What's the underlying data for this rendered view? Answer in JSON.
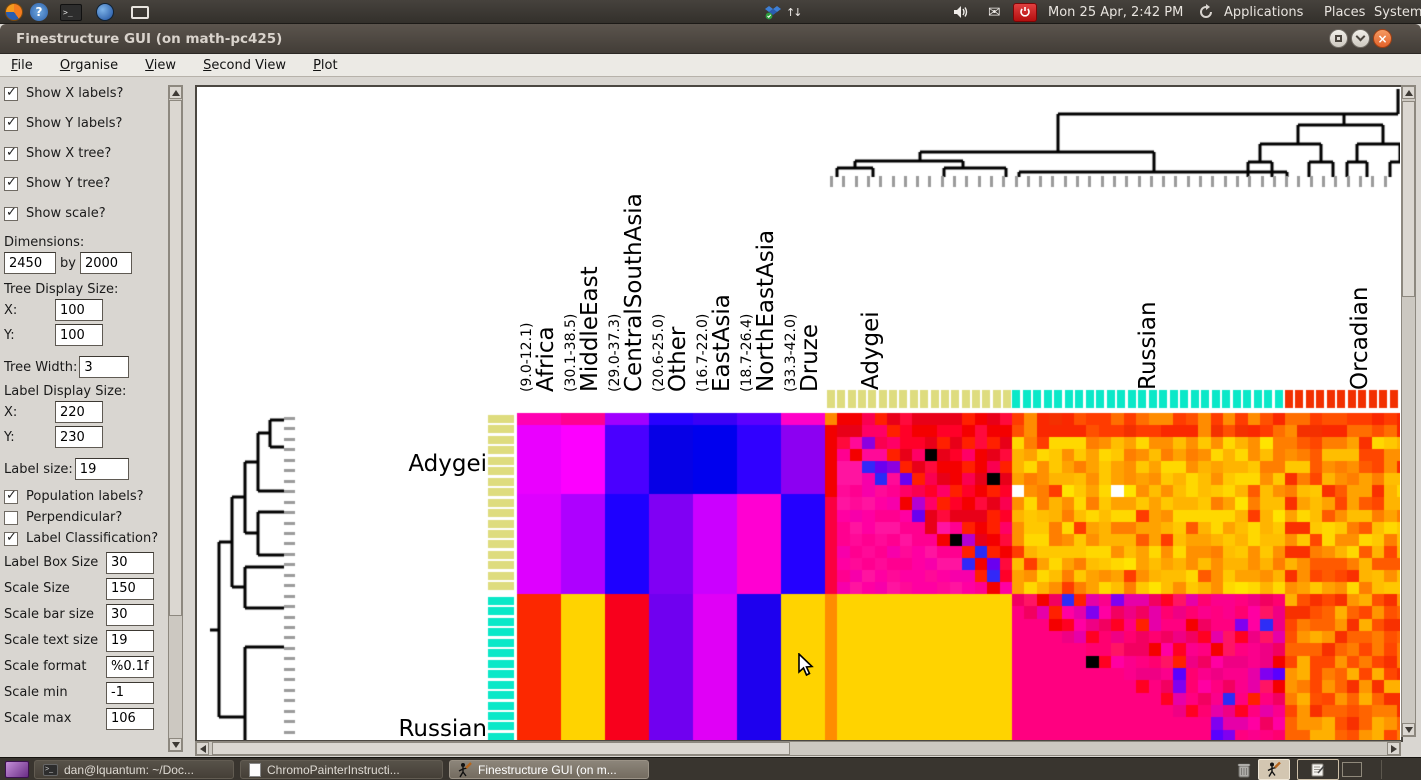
{
  "glyphs": {
    "check": "✓",
    "close": "×",
    "question": "?",
    "term_prompt": ">_",
    "mail": "✉",
    "net_up": "↑",
    "net_down": "↓"
  },
  "desktop": {
    "top_panel": {
      "left_icons": [
        "firefox-icon",
        "help-icon",
        "terminal-icon",
        "thunderbird-icon",
        "display-icon"
      ],
      "right_icons": [
        "dropbox-icon",
        "network-icon",
        "volume-icon",
        "mail-icon",
        "power-icon",
        "updates-icon"
      ],
      "clock": "Mon 25 Apr,  2:42 PM",
      "menus": [
        "Applications",
        "Places",
        "System"
      ]
    },
    "taskbar": {
      "windows": [
        {
          "label": "dan@lquantum: ~/Doc...",
          "icon": "terminal",
          "active": false
        },
        {
          "label": "ChromoPainterInstructi...",
          "icon": "document",
          "active": false
        },
        {
          "label": "Finestructure GUI (on m...",
          "icon": "finestructure",
          "active": true
        }
      ],
      "tray_icons": [
        "trash-icon",
        "finestructure-icon",
        "notes-icon"
      ]
    }
  },
  "window": {
    "title": "Finestructure GUI (on math-pc425)",
    "menu": [
      "File",
      "Organise",
      "View",
      "Second View",
      "Plot"
    ]
  },
  "sidebar": {
    "checks_top": [
      {
        "label": "Show X labels?",
        "checked": true
      },
      {
        "label": "Show Y labels?",
        "checked": true
      },
      {
        "label": "Show X tree?",
        "checked": true
      },
      {
        "label": "Show Y tree?",
        "checked": true
      },
      {
        "label": "Show scale?",
        "checked": true
      }
    ],
    "dimensions": {
      "label": "Dimensions:",
      "width": "2450",
      "by": "by",
      "height": "2000"
    },
    "tree_display": {
      "label": "Tree Display Size:",
      "x_label": "X:",
      "x": "100",
      "y_label": "Y:",
      "y": "100"
    },
    "tree_width": {
      "label": "Tree Width:",
      "value": "3"
    },
    "label_display": {
      "label": "Label Display Size:",
      "x_label": "X:",
      "x": "220",
      "y_label": "Y:",
      "y": "230"
    },
    "label_size": {
      "label": "Label size:",
      "value": "19"
    },
    "checks_mid": [
      {
        "label": "Population labels?",
        "checked": true
      },
      {
        "label": "Perpendicular?",
        "checked": false
      },
      {
        "label": "Label Classification?",
        "checked": true
      }
    ],
    "fields": [
      {
        "label": "Label Box Size",
        "value": "30"
      },
      {
        "label": "Scale Size",
        "value": "150"
      },
      {
        "label": "Scale bar size",
        "value": "30"
      },
      {
        "label": "Scale text size",
        "value": "19"
      },
      {
        "label": "Scale format",
        "value": "%0.1f"
      },
      {
        "label": "Scale min",
        "value": "-1"
      },
      {
        "label": "Scale max",
        "value": "106"
      }
    ]
  },
  "plot": {
    "col_pop_labels": [
      {
        "name": "Africa",
        "range": "(9.0-12.1)"
      },
      {
        "name": "MiddleEast",
        "range": "(30.1-38.5)"
      },
      {
        "name": "CentralSouthAsia",
        "range": "(29.0-37.3)"
      },
      {
        "name": "Other",
        "range": "(20.6-25.0)"
      },
      {
        "name": "EastAsia",
        "range": "(16.7-22.0)"
      },
      {
        "name": "NorthEastAsia",
        "range": "(18.7-26.4)"
      },
      {
        "name": "Druze",
        "range": "(33.3-42.0)"
      }
    ],
    "col_group_labels": [
      "Adygei",
      "Russian",
      "Orcadian"
    ],
    "row_labels": [
      "Adygei",
      "Russian"
    ],
    "classification_colors": {
      "adygei": "#dedc7e",
      "russian": "#0ae8c8",
      "orcadian": "#f23000"
    },
    "heatmap": {
      "pop_bands": {
        "adygei": [
          [
            "#ff00b4",
            "#ff0092",
            "#a000ff",
            "#2800ff",
            "#3a00f6",
            "#5a00ff",
            "#ff00c8"
          ],
          [
            "#ea00ff",
            "#fc00ff",
            "#4a00ff",
            "#0600e6",
            "#0000ee",
            "#3000ff",
            "#8c00f2"
          ],
          [
            "#de00ff",
            "#ae00ff",
            "#1e00ff",
            "#8000f4",
            "#cb00ff",
            "#ff00d2",
            "#2400ff"
          ]
        ],
        "russian": [
          "#fc2800",
          "#ffd300",
          "#f8001c",
          "#7000f0",
          "#e000f6",
          "#1e00ee",
          "#ffd300"
        ]
      },
      "palettes": {
        "aa_col0": [
          "#ff8800",
          "#f20000",
          "#fa0040"
        ],
        "aa_red": [
          "#ff0028",
          "#f40000",
          "#ff0a3c",
          "#e80018",
          "#ff2000",
          "#fa0050",
          "#ff0066"
        ],
        "aa_pink": [
          "#ff0a98",
          "#ff00a2",
          "#f700aa",
          "#ff14a0",
          "#ff0090"
        ],
        "aa_near": [
          "#6a00f0",
          "#3228f8",
          "#8c00e0",
          "#b400d2",
          "#2a2af7"
        ],
        "ar_gold": [
          "#ffb400",
          "#ffa200",
          "#ff9000",
          "#ffc800",
          "#ffd800",
          "#ff7e00",
          "#ffbe00"
        ],
        "ar_rare": [
          "#ff3c00",
          "#ff5a00",
          "#ffe400"
        ],
        "ar_top": [
          "#ff5000",
          "#ff3c00",
          "#ff6e00",
          "#fa2800",
          "#ff8c00",
          "#f43000"
        ],
        "ao_red": [
          "#ff5a00",
          "#ff4600",
          "#fa3000"
        ],
        "ra_fill": "#ffd300",
        "ra_first_col": "#ff8c00",
        "rr_base": "#ff0080",
        "rr_speckle": [
          "#ff0080",
          "#fb008c",
          "#ff0070",
          "#ef0084",
          "#ff00a2",
          "#e600a8",
          "#ff1464",
          "#f20060"
        ],
        "rr_red": [
          "#ff0022",
          "#f40000",
          "#ff2000"
        ],
        "rr_near": [
          "#8000f0",
          "#2d2df6",
          "#b400d2",
          "#5a00ff"
        ],
        "ro": [
          "#ff6400",
          "#ff4600",
          "#ff7d00",
          "#f83000",
          "#ff9600",
          "#ffb000",
          "#ff5000"
        ]
      },
      "counts": {
        "adygei_cols": 15,
        "russian_cols": 22,
        "orcadian_cols": 10,
        "adygei_rows": 15,
        "russian_rows": 12
      },
      "black_cells_aa": [
        [
          3,
          8
        ],
        [
          5,
          13
        ],
        [
          10,
          10
        ]
      ],
      "black_cells_rr": [
        [
          5,
          6
        ]
      ],
      "white_cells_ar": [
        [
          6,
          0
        ],
        [
          6,
          8
        ]
      ]
    },
    "x_tree_segments": [
      [
        1201,
        2,
        1201,
        27
      ],
      [
        861,
        27,
        1201,
        27
      ],
      [
        861,
        27,
        861,
        65
      ],
      [
        723,
        65,
        957,
        65
      ],
      [
        957,
        65,
        957,
        85
      ],
      [
        822,
        85,
        1090,
        85
      ],
      [
        822,
        85,
        822,
        90
      ],
      [
        1090,
        85,
        1090,
        90
      ],
      [
        723,
        65,
        723,
        74
      ],
      [
        658,
        74,
        766,
        74
      ],
      [
        658,
        74,
        658,
        81
      ],
      [
        640,
        81,
        676,
        81
      ],
      [
        640,
        81,
        640,
        90
      ],
      [
        676,
        81,
        676,
        90
      ],
      [
        766,
        74,
        766,
        81
      ],
      [
        747,
        81,
        809,
        81
      ],
      [
        747,
        81,
        747,
        90
      ],
      [
        809,
        81,
        809,
        90
      ],
      [
        1147,
        27,
        1147,
        38
      ],
      [
        1101,
        38,
        1186,
        38
      ],
      [
        1101,
        38,
        1101,
        57
      ],
      [
        1063,
        57,
        1124,
        57
      ],
      [
        1063,
        57,
        1063,
        75
      ],
      [
        1051,
        75,
        1075,
        75
      ],
      [
        1051,
        75,
        1051,
        90
      ],
      [
        1075,
        75,
        1075,
        90
      ],
      [
        1124,
        57,
        1124,
        75
      ],
      [
        1112,
        75,
        1136,
        75
      ],
      [
        1112,
        75,
        1112,
        90
      ],
      [
        1136,
        75,
        1136,
        90
      ],
      [
        1186,
        38,
        1186,
        57
      ],
      [
        1160,
        57,
        1203,
        57
      ],
      [
        1160,
        57,
        1160,
        75
      ],
      [
        1150,
        75,
        1170,
        75
      ],
      [
        1150,
        75,
        1150,
        90
      ],
      [
        1170,
        75,
        1170,
        90
      ],
      [
        1203,
        57,
        1203,
        75
      ],
      [
        1193,
        75,
        1203,
        75
      ],
      [
        1193,
        75,
        1193,
        90
      ]
    ],
    "y_tree_segments": [
      [
        73,
        333,
        87,
        333
      ],
      [
        73,
        360,
        87,
        360
      ],
      [
        73,
        333,
        73,
        360
      ],
      [
        61,
        346,
        73,
        346
      ],
      [
        61,
        346,
        61,
        404
      ],
      [
        61,
        404,
        87,
        404
      ],
      [
        48,
        375,
        61,
        375
      ],
      [
        48,
        375,
        48,
        446
      ],
      [
        48,
        446,
        61,
        446
      ],
      [
        61,
        446,
        61,
        425
      ],
      [
        61,
        425,
        87,
        425
      ],
      [
        61,
        446,
        61,
        468
      ],
      [
        61,
        468,
        87,
        468
      ],
      [
        35,
        410,
        48,
        410
      ],
      [
        35,
        410,
        35,
        500
      ],
      [
        35,
        500,
        48,
        500
      ],
      [
        48,
        500,
        48,
        480
      ],
      [
        48,
        480,
        87,
        480
      ],
      [
        48,
        500,
        48,
        521
      ],
      [
        48,
        521,
        87,
        521
      ],
      [
        22,
        455,
        35,
        455
      ],
      [
        22,
        455,
        22,
        630
      ],
      [
        22,
        630,
        48,
        630
      ],
      [
        48,
        630,
        48,
        560
      ],
      [
        48,
        560,
        87,
        560
      ],
      [
        48,
        630,
        48,
        653
      ],
      [
        13,
        543,
        22,
        543
      ]
    ]
  }
}
